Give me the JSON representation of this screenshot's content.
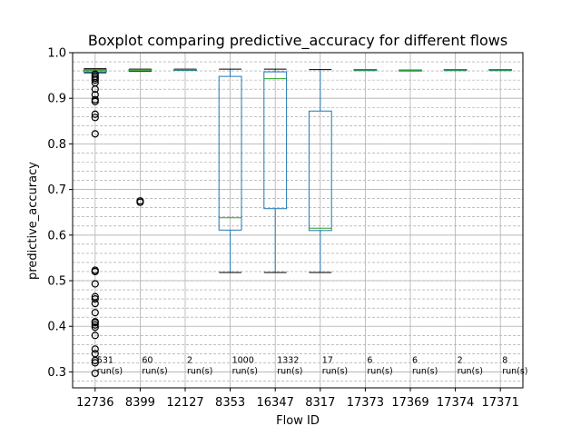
{
  "chart_data": {
    "type": "box",
    "title": "Boxplot comparing predictive_accuracy for different flows",
    "xlabel": "Flow ID",
    "ylabel": "predictive_accuracy",
    "ylim": [
      0.265,
      1.0
    ],
    "yticks": [
      0.3,
      0.4,
      0.5,
      0.6,
      0.7,
      0.8,
      0.9,
      1.0
    ],
    "ytick_labels": [
      "0.3",
      "0.4",
      "0.5",
      "0.6",
      "0.7",
      "0.8",
      "0.9",
      "1.0"
    ],
    "minor_grid_step": 0.02,
    "grid": true,
    "box_color": "#1f77b4",
    "median_color": "#2ca02c",
    "run_label_suffix": "run(s)",
    "flows": [
      {
        "id": "12736",
        "q1": 0.958,
        "median": 0.961,
        "q3": 0.963,
        "whislo": 0.956,
        "whishi": 0.965,
        "runs": "531",
        "outliers": [
          0.953,
          0.948,
          0.944,
          0.94,
          0.934,
          0.92,
          0.908,
          0.897,
          0.893,
          0.865,
          0.858,
          0.822,
          0.523,
          0.52,
          0.493,
          0.465,
          0.46,
          0.45,
          0.43,
          0.41,
          0.408,
          0.403,
          0.398,
          0.38,
          0.35,
          0.34,
          0.325,
          0.32,
          0.297
        ]
      },
      {
        "id": "8399",
        "q1": 0.96,
        "median": 0.961,
        "q3": 0.963,
        "whislo": 0.959,
        "whishi": 0.964,
        "runs": "60",
        "outliers": [
          0.675,
          0.672
        ]
      },
      {
        "id": "12127",
        "q1": 0.962,
        "median": 0.9625,
        "q3": 0.963,
        "whislo": 0.962,
        "whishi": 0.964,
        "runs": "2",
        "outliers": []
      },
      {
        "id": "8353",
        "q1": 0.611,
        "median": 0.638,
        "q3": 0.948,
        "whislo": 0.518,
        "whishi": 0.964,
        "runs": "1000",
        "outliers": []
      },
      {
        "id": "16347",
        "q1": 0.658,
        "median": 0.943,
        "q3": 0.958,
        "whislo": 0.518,
        "whishi": 0.964,
        "runs": "1332",
        "outliers": []
      },
      {
        "id": "8317",
        "q1": 0.61,
        "median": 0.615,
        "q3": 0.872,
        "whislo": 0.518,
        "whishi": 0.963,
        "runs": "17",
        "outliers": []
      },
      {
        "id": "17373",
        "q1": 0.961,
        "median": 0.962,
        "q3": 0.963,
        "whislo": 0.961,
        "whishi": 0.963,
        "runs": "6",
        "outliers": []
      },
      {
        "id": "17369",
        "q1": 0.96,
        "median": 0.961,
        "q3": 0.962,
        "whislo": 0.96,
        "whishi": 0.962,
        "runs": "6",
        "outliers": []
      },
      {
        "id": "17374",
        "q1": 0.961,
        "median": 0.962,
        "q3": 0.963,
        "whislo": 0.961,
        "whishi": 0.963,
        "runs": "2",
        "outliers": []
      },
      {
        "id": "17371",
        "q1": 0.961,
        "median": 0.962,
        "q3": 0.963,
        "whislo": 0.961,
        "whishi": 0.963,
        "runs": "8",
        "outliers": []
      }
    ]
  }
}
